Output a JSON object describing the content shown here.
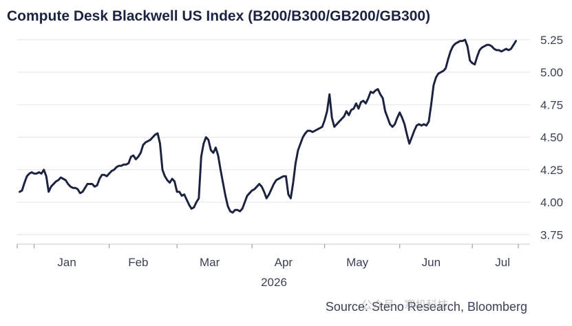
{
  "chart_data": {
    "type": "line",
    "title": "Compute Desk Blackwell US Index (B200/B300/GB200/GB300)",
    "source": "Source: Steno Research, Bloomberg",
    "year_label": "2026",
    "ylim": [
      3.7,
      5.3
    ],
    "yticks": [
      3.75,
      4.0,
      4.25,
      4.5,
      4.75,
      5.0,
      5.25
    ],
    "ytick_labels": [
      "3.75",
      "4.00",
      "4.25",
      "4.50",
      "4.75",
      "5.00",
      "5.25"
    ],
    "months": [
      "Jan",
      "Feb",
      "Mar",
      "Apr",
      "May",
      "Jun",
      "Jul"
    ],
    "x_unit": "days since 2026-01-01",
    "grid": true,
    "legend": "none",
    "line_color": "#1c2340",
    "series": [
      {
        "values": [
          [
            -6,
            4.08
          ],
          [
            -5,
            4.09
          ],
          [
            -4,
            4.15
          ],
          [
            -3,
            4.2
          ],
          [
            -2,
            4.22
          ],
          [
            -1,
            4.23
          ],
          [
            0,
            4.22
          ],
          [
            1,
            4.22
          ],
          [
            2,
            4.23
          ],
          [
            3,
            4.22
          ],
          [
            4,
            4.25
          ],
          [
            5,
            4.2
          ],
          [
            6,
            4.08
          ],
          [
            7,
            4.12
          ],
          [
            9,
            4.16
          ],
          [
            10,
            4.17
          ],
          [
            11,
            4.19
          ],
          [
            12,
            4.18
          ],
          [
            13,
            4.17
          ],
          [
            14,
            4.14
          ],
          [
            15,
            4.12
          ],
          [
            16,
            4.11
          ],
          [
            17,
            4.11
          ],
          [
            18,
            4.1
          ],
          [
            19,
            4.07
          ],
          [
            20,
            4.08
          ],
          [
            21,
            4.11
          ],
          [
            22,
            4.14
          ],
          [
            23,
            4.14
          ],
          [
            24,
            4.14
          ],
          [
            25,
            4.12
          ],
          [
            26,
            4.13
          ],
          [
            27,
            4.18
          ],
          [
            28,
            4.21
          ],
          [
            29,
            4.21
          ],
          [
            30,
            4.2
          ],
          [
            31,
            4.22
          ],
          [
            32,
            4.24
          ],
          [
            33,
            4.25
          ],
          [
            34,
            4.27
          ],
          [
            35,
            4.28
          ],
          [
            36,
            4.28
          ],
          [
            37,
            4.29
          ],
          [
            38,
            4.29
          ],
          [
            39,
            4.3
          ],
          [
            40,
            4.35
          ],
          [
            41,
            4.36
          ],
          [
            42,
            4.33
          ],
          [
            43,
            4.35
          ],
          [
            44,
            4.38
          ],
          [
            45,
            4.44
          ],
          [
            46,
            4.46
          ],
          [
            47,
            4.47
          ],
          [
            48,
            4.48
          ],
          [
            49,
            4.5
          ],
          [
            50,
            4.52
          ],
          [
            51,
            4.53
          ],
          [
            52,
            4.45
          ],
          [
            53,
            4.25
          ],
          [
            54,
            4.2
          ],
          [
            55,
            4.17
          ],
          [
            56,
            4.15
          ],
          [
            57,
            4.18
          ],
          [
            58,
            4.16
          ],
          [
            59,
            4.08
          ],
          [
            60,
            4.08
          ],
          [
            61,
            4.05
          ],
          [
            62,
            4.06
          ],
          [
            63,
            4.02
          ],
          [
            64,
            3.98
          ],
          [
            65,
            3.95
          ],
          [
            66,
            3.96
          ],
          [
            67,
            4.0
          ],
          [
            68,
            4.03
          ],
          [
            69,
            4.35
          ],
          [
            70,
            4.45
          ],
          [
            71,
            4.5
          ],
          [
            72,
            4.48
          ],
          [
            73,
            4.4
          ],
          [
            74,
            4.38
          ],
          [
            75,
            4.42
          ],
          [
            76,
            4.36
          ],
          [
            77,
            4.25
          ],
          [
            78,
            4.15
          ],
          [
            79,
            4.05
          ],
          [
            80,
            3.97
          ],
          [
            81,
            3.93
          ],
          [
            82,
            3.92
          ],
          [
            83,
            3.94
          ],
          [
            84,
            3.94
          ],
          [
            85,
            3.93
          ],
          [
            86,
            3.95
          ],
          [
            87,
            4.0
          ],
          [
            88,
            4.05
          ],
          [
            89,
            4.07
          ],
          [
            90,
            4.09
          ],
          [
            91,
            4.1
          ],
          [
            92,
            4.12
          ],
          [
            93,
            4.14
          ],
          [
            94,
            4.12
          ],
          [
            95,
            4.08
          ],
          [
            96,
            4.03
          ],
          [
            97,
            4.06
          ],
          [
            98,
            4.1
          ],
          [
            99,
            4.14
          ],
          [
            100,
            4.17
          ],
          [
            101,
            4.18
          ],
          [
            102,
            4.19
          ],
          [
            103,
            4.2
          ],
          [
            104,
            4.2
          ],
          [
            105,
            4.06
          ],
          [
            106,
            4.03
          ],
          [
            107,
            4.15
          ],
          [
            108,
            4.3
          ],
          [
            109,
            4.4
          ],
          [
            110,
            4.45
          ],
          [
            111,
            4.5
          ],
          [
            112,
            4.53
          ],
          [
            113,
            4.55
          ],
          [
            114,
            4.55
          ],
          [
            115,
            4.54
          ],
          [
            116,
            4.55
          ],
          [
            117,
            4.56
          ],
          [
            118,
            4.57
          ],
          [
            119,
            4.58
          ],
          [
            120,
            4.63
          ],
          [
            121,
            4.7
          ],
          [
            122,
            4.83
          ],
          [
            123,
            4.65
          ],
          [
            124,
            4.58
          ],
          [
            125,
            4.6
          ],
          [
            126,
            4.62
          ],
          [
            127,
            4.64
          ],
          [
            128,
            4.66
          ],
          [
            129,
            4.7
          ],
          [
            130,
            4.67
          ],
          [
            131,
            4.71
          ],
          [
            132,
            4.72
          ],
          [
            133,
            4.76
          ],
          [
            134,
            4.72
          ],
          [
            135,
            4.77
          ],
          [
            136,
            4.78
          ],
          [
            137,
            4.76
          ],
          [
            138,
            4.8
          ],
          [
            139,
            4.85
          ],
          [
            140,
            4.84
          ],
          [
            141,
            4.86
          ],
          [
            142,
            4.87
          ],
          [
            143,
            4.83
          ],
          [
            144,
            4.8
          ],
          [
            145,
            4.7
          ],
          [
            146,
            4.65
          ],
          [
            147,
            4.6
          ],
          [
            148,
            4.58
          ],
          [
            149,
            4.6
          ],
          [
            150,
            4.65
          ],
          [
            151,
            4.69
          ],
          [
            152,
            4.65
          ],
          [
            153,
            4.6
          ],
          [
            154,
            4.52
          ],
          [
            155,
            4.45
          ],
          [
            156,
            4.5
          ],
          [
            157,
            4.55
          ],
          [
            158,
            4.59
          ],
          [
            159,
            4.6
          ],
          [
            160,
            4.59
          ],
          [
            161,
            4.6
          ],
          [
            162,
            4.59
          ],
          [
            163,
            4.62
          ],
          [
            164,
            4.75
          ],
          [
            165,
            4.9
          ],
          [
            166,
            4.96
          ],
          [
            167,
            4.99
          ],
          [
            168,
            5.0
          ],
          [
            169,
            5.01
          ],
          [
            170,
            5.03
          ],
          [
            171,
            5.1
          ],
          [
            172,
            5.16
          ],
          [
            173,
            5.2
          ],
          [
            174,
            5.22
          ],
          [
            175,
            5.23
          ],
          [
            176,
            5.24
          ],
          [
            177,
            5.24
          ],
          [
            178,
            5.25
          ],
          [
            179,
            5.2
          ],
          [
            180,
            5.09
          ],
          [
            181,
            5.07
          ],
          [
            182,
            5.06
          ],
          [
            183,
            5.12
          ],
          [
            184,
            5.17
          ],
          [
            185,
            5.19
          ],
          [
            186,
            5.2
          ],
          [
            187,
            5.21
          ],
          [
            188,
            5.21
          ],
          [
            189,
            5.2
          ],
          [
            190,
            5.18
          ],
          [
            191,
            5.17
          ],
          [
            192,
            5.17
          ],
          [
            193,
            5.16
          ],
          [
            194,
            5.17
          ],
          [
            195,
            5.18
          ],
          [
            196,
            5.17
          ],
          [
            197,
            5.18
          ],
          [
            198,
            5.21
          ],
          [
            199,
            5.24
          ]
        ]
      }
    ]
  }
}
